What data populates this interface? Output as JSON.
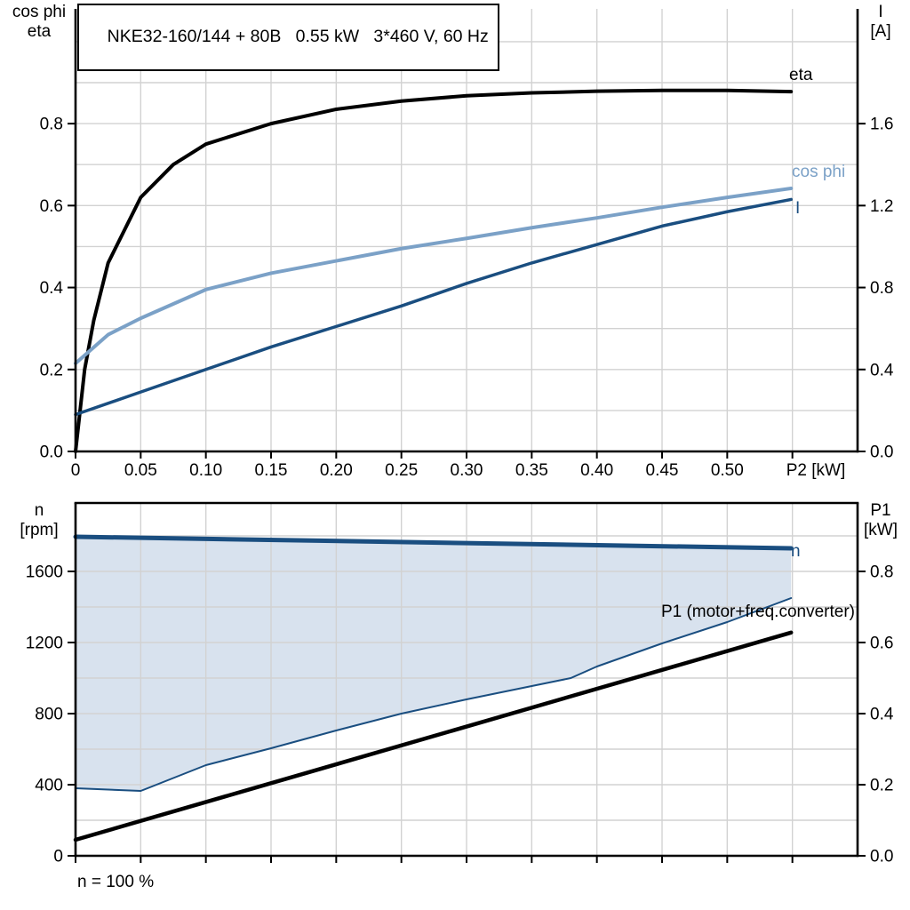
{
  "colors": {
    "black": "#000000",
    "light_blue": "#7ba1c7",
    "dark_blue": "#1a4e80",
    "fill_blue": "#d8e2ee",
    "grid": "#d2d2d2",
    "text": "#000000"
  },
  "chart_data": [
    {
      "type": "line",
      "title": "NKE32-160/144 + 80B   0.55 kW   3*460 V, 60 Hz",
      "x_axis": {
        "label": "P2 [kW]",
        "min": 0,
        "max": 0.6,
        "grid_step": 0.05,
        "tick_values": [
          0,
          0.05,
          0.1,
          0.15,
          0.2,
          0.25,
          0.3,
          0.35,
          0.4,
          0.45,
          0.5,
          0.55
        ],
        "tick_labels": [
          "0",
          "0.05",
          "0.10",
          "0.15",
          "0.20",
          "0.25",
          "0.30",
          "0.35",
          "0.40",
          "0.45",
          "0.50",
          ""
        ]
      },
      "left_axis": {
        "title1": "cos phi",
        "title2": "eta",
        "min": 0,
        "max": 1.08,
        "grid_step": 0.1,
        "tick_values": [
          0,
          0.2,
          0.4,
          0.6,
          0.8
        ],
        "tick_labels": [
          "0.0",
          "0.2",
          "0.4",
          "0.6",
          "0.8"
        ]
      },
      "right_axis": {
        "title1": "I",
        "title2": "[A]",
        "min": 0,
        "max": 2.16,
        "tick_values": [
          0,
          0.4,
          0.8,
          1.2,
          1.6
        ],
        "tick_labels": [
          "0.0",
          "0.4",
          "0.8",
          "1.2",
          "1.6"
        ]
      },
      "series": [
        {
          "name": "eta",
          "label": "eta",
          "axis": "left",
          "color": "black",
          "width": 4,
          "x": [
            0,
            0.007,
            0.014,
            0.025,
            0.0375,
            0.05,
            0.075,
            0.1,
            0.15,
            0.2,
            0.25,
            0.3,
            0.35,
            0.4,
            0.45,
            0.5,
            0.549
          ],
          "y": [
            0,
            0.2,
            0.32,
            0.46,
            0.54,
            0.62,
            0.7,
            0.75,
            0.8,
            0.835,
            0.855,
            0.868,
            0.875,
            0.879,
            0.881,
            0.881,
            0.878
          ]
        },
        {
          "name": "cos phi",
          "label": "cos phi",
          "axis": "left",
          "color": "light_blue",
          "width": 4,
          "x": [
            0,
            0.025,
            0.05,
            0.075,
            0.1,
            0.15,
            0.2,
            0.25,
            0.3,
            0.35,
            0.4,
            0.45,
            0.5,
            0.549
          ],
          "y": [
            0.215,
            0.285,
            0.325,
            0.36,
            0.395,
            0.435,
            0.465,
            0.495,
            0.52,
            0.546,
            0.57,
            0.596,
            0.62,
            0.642
          ]
        },
        {
          "name": "I",
          "label": "I",
          "axis": "right",
          "color": "dark_blue",
          "width": 3.5,
          "x": [
            0,
            0.05,
            0.1,
            0.15,
            0.2,
            0.25,
            0.3,
            0.35,
            0.4,
            0.45,
            0.5,
            0.549
          ],
          "y": [
            0.18,
            0.29,
            0.4,
            0.51,
            0.61,
            0.71,
            0.82,
            0.92,
            1.01,
            1.1,
            1.17,
            1.23
          ]
        }
      ]
    },
    {
      "type": "line",
      "note": "n = 100 %",
      "x_axis": {
        "label": "",
        "min": 0,
        "max": 0.6,
        "grid_step": 0.05,
        "tick_values": [
          0,
          0.05,
          0.1,
          0.15,
          0.2,
          0.25,
          0.3,
          0.35,
          0.4,
          0.45,
          0.5,
          0.55
        ],
        "tick_labels": null
      },
      "left_axis": {
        "title1": "n",
        "title2": "[rpm]",
        "min": 0,
        "max": 1985,
        "grid_step": 200,
        "tick_values": [
          0,
          400,
          800,
          1200,
          1600
        ],
        "tick_labels": [
          "0",
          "400",
          "800",
          "1200",
          "1600"
        ]
      },
      "right_axis": {
        "title1": "P1",
        "title2": "[kW]",
        "min": 0,
        "max": 0.9925,
        "tick_values": [
          0,
          0.2,
          0.4,
          0.6,
          0.8
        ],
        "tick_labels": [
          "0.0",
          "0.2",
          "0.4",
          "0.6",
          "0.8"
        ]
      },
      "series": [
        {
          "name": "n",
          "label": "n",
          "axis": "left",
          "color": "dark_blue",
          "width": 5,
          "x": [
            0,
            0.549
          ],
          "y": [
            1795,
            1730
          ]
        },
        {
          "name": "n min",
          "label": "",
          "axis": "left",
          "color": "dark_blue",
          "width": 2,
          "x": [
            0,
            0.05,
            0.1,
            0.15,
            0.2,
            0.25,
            0.3,
            0.35,
            0.38,
            0.4,
            0.45,
            0.5,
            0.549
          ],
          "y": [
            380,
            365,
            510,
            605,
            705,
            800,
            880,
            955,
            1000,
            1065,
            1195,
            1315,
            1450
          ]
        },
        {
          "name": "P1",
          "label": "P1 (motor+freq.converter)",
          "axis": "right",
          "color": "black",
          "width": 4.5,
          "x": [
            0,
            0.549
          ],
          "y": [
            0.045,
            0.628
          ]
        }
      ],
      "shaded_region": {
        "upper": "n",
        "lower": "n min",
        "color": "fill_blue"
      }
    }
  ]
}
